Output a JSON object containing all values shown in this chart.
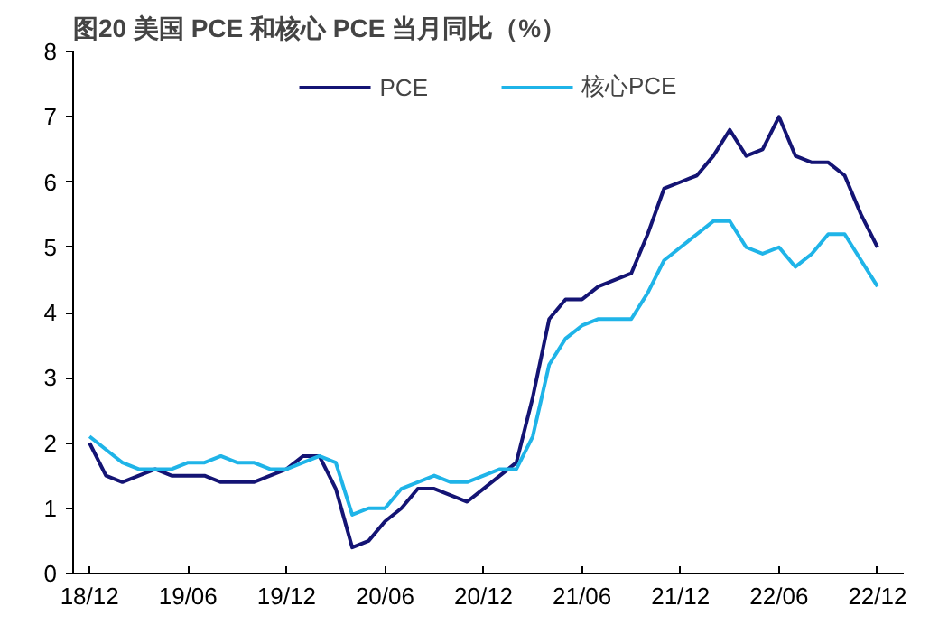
{
  "chart_data": {
    "type": "line",
    "title": "图20 美国 PCE 和核心 PCE 当月同比（%）",
    "categories": [
      "18/12",
      null,
      null,
      null,
      null,
      null,
      "19/06",
      null,
      null,
      null,
      null,
      null,
      "19/12",
      null,
      null,
      null,
      null,
      null,
      "20/06",
      null,
      null,
      null,
      null,
      null,
      "20/12",
      null,
      null,
      null,
      null,
      null,
      "21/06",
      null,
      null,
      null,
      null,
      null,
      "21/12",
      null,
      null,
      null,
      null,
      null,
      "22/06",
      null,
      null,
      null,
      null,
      null,
      "22/12"
    ],
    "series": [
      {
        "name": "PCE",
        "color": "#141474",
        "values": [
          2.0,
          1.5,
          1.4,
          1.5,
          1.6,
          1.5,
          1.5,
          1.5,
          1.4,
          1.4,
          1.4,
          1.5,
          1.6,
          1.8,
          1.8,
          1.3,
          0.4,
          0.5,
          0.8,
          1.0,
          1.3,
          1.3,
          1.2,
          1.1,
          1.3,
          1.5,
          1.7,
          2.7,
          3.9,
          4.2,
          4.2,
          4.4,
          4.5,
          4.6,
          5.2,
          5.9,
          6.0,
          6.1,
          6.4,
          6.8,
          6.4,
          6.5,
          7.0,
          6.4,
          6.3,
          6.3,
          6.1,
          5.5,
          5.0
        ]
      },
      {
        "name": "核心PCE",
        "color": "#1fb4e8",
        "values": [
          2.1,
          1.9,
          1.7,
          1.6,
          1.6,
          1.6,
          1.7,
          1.7,
          1.8,
          1.7,
          1.7,
          1.6,
          1.6,
          1.7,
          1.8,
          1.7,
          0.9,
          1.0,
          1.0,
          1.3,
          1.4,
          1.5,
          1.4,
          1.4,
          1.5,
          1.6,
          1.6,
          2.1,
          3.2,
          3.6,
          3.8,
          3.9,
          3.9,
          3.9,
          4.3,
          4.8,
          5.0,
          5.2,
          5.4,
          5.4,
          5.0,
          4.9,
          5.0,
          4.7,
          4.9,
          5.2,
          5.2,
          4.8,
          4.4
        ]
      }
    ],
    "ylim": [
      0,
      8
    ],
    "yticks": [
      0,
      1,
      2,
      3,
      4,
      5,
      6,
      7,
      8
    ],
    "grid": false,
    "legend": "top",
    "marker": "none",
    "line_style": "solid"
  }
}
